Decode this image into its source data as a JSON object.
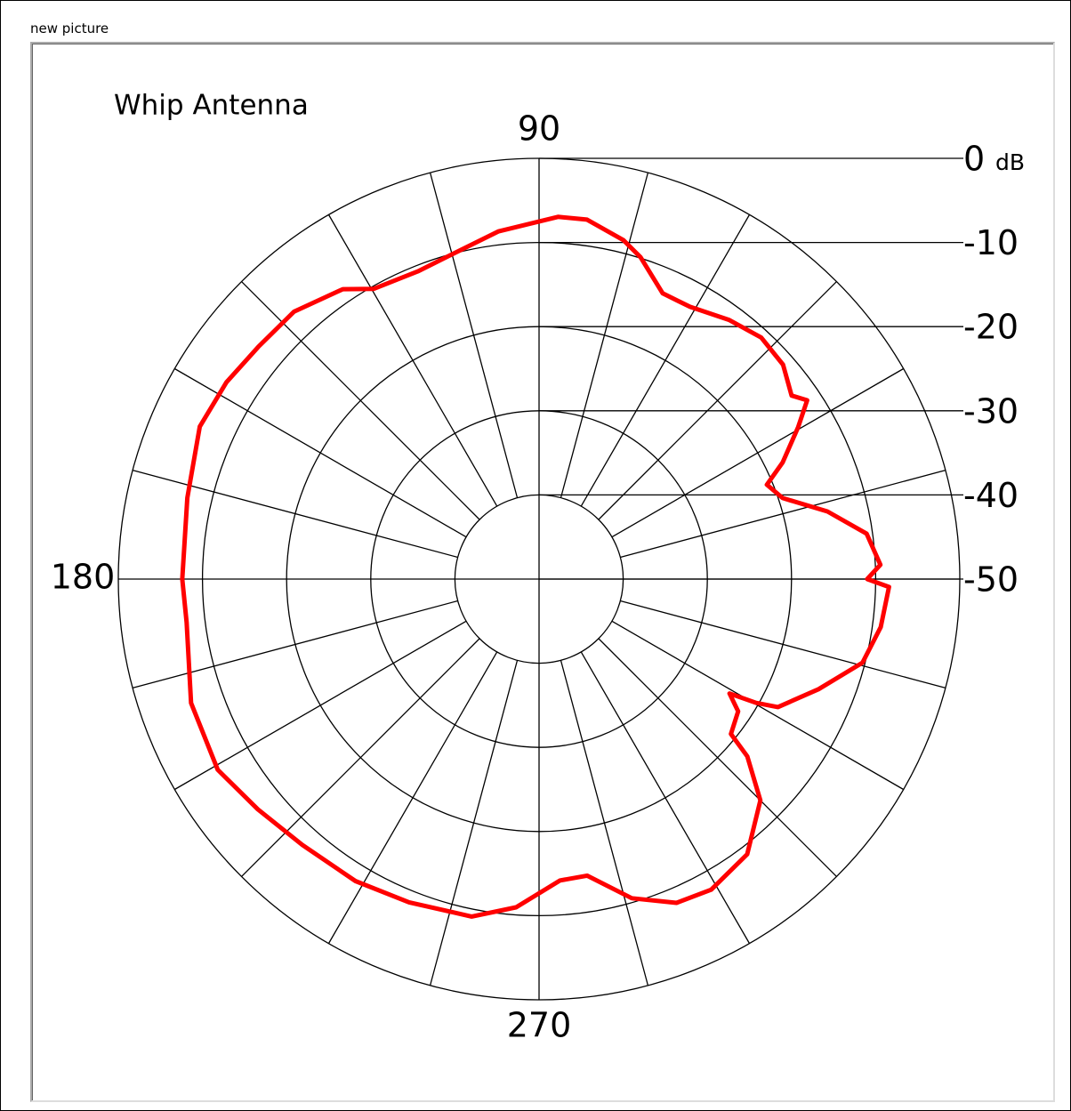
{
  "window_title": "new picture",
  "chart_data": {
    "type": "polar",
    "title": "Whip Antenna",
    "r_unit": "dB",
    "rlim": [
      -50,
      0
    ],
    "rticks": [
      0,
      -10,
      -20,
      -30,
      -40,
      -50
    ],
    "thetaticks": [
      90,
      180,
      270
    ],
    "theta_grid": [
      0,
      15,
      30,
      45,
      60,
      75,
      90,
      105,
      120,
      135,
      150,
      165,
      180,
      195,
      210,
      225,
      240,
      255,
      270,
      285,
      300,
      315,
      330,
      345
    ],
    "series": [
      {
        "color": "#ff0000",
        "x": [
          0,
          2.4,
          7.9,
          13.2,
          18.4,
          22.5,
          25.6,
          30.4,
          33.7,
          36,
          41.3,
          47.4,
          53.7,
          61,
          66.6,
          72.5,
          76,
          82.4,
          87,
          96.7,
          104.7,
          111.5,
          119.7,
          124.1,
          132.5,
          140.4,
          147.8,
          155.8,
          167,
          180,
          187,
          199.6,
          210.7,
          219.3,
          228.3,
          238.7,
          248.1,
          258.7,
          266,
          274,
          279.2,
          286.2,
          293,
          299,
          307.1,
          315,
          319.6,
          321.1,
          326.4,
          329,
          330.3,
          331.8,
          338.5,
          345.5,
          352,
          358.7
        ],
        "values": [
          -11,
          -9.4,
          -10.7,
          -14.8,
          -19.5,
          -20.7,
          -17.9,
          -14.3,
          -11.7,
          -12.9,
          -11.4,
          -11,
          -11.8,
          -13,
          -13,
          -9.9,
          -8.5,
          -6.9,
          -6.9,
          -8.4,
          -10,
          -10.7,
          -10.3,
          -8.4,
          -6.9,
          -6.7,
          -6.1,
          -5.8,
          -7.1,
          -7.6,
          -7.8,
          -6.1,
          -5.6,
          -6.8,
          -7.7,
          -8.0,
          -8.6,
          -9.1,
          -10.9,
          -14.1,
          -14.3,
          -10.5,
          -8.2,
          -7.8,
          -9,
          -12.8,
          -17.5,
          -20.7,
          -21.6,
          -23.6,
          -20.3,
          -17.8,
          -14.3,
          -10.3,
          -9,
          -8.4
        ]
      }
    ]
  }
}
